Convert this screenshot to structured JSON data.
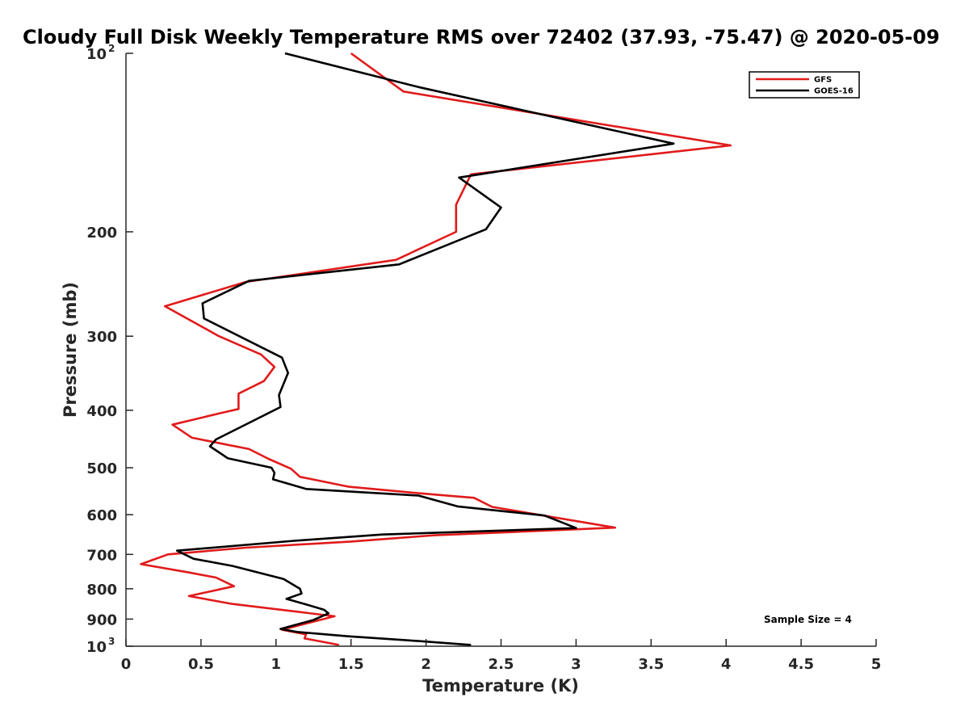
{
  "chart_data": {
    "type": "line",
    "title": "Cloudy Full Disk Weekly Temperature RMS over 72402 (37.93, -75.47) @ 2020-05-09",
    "xlabel": "Temperature (K)",
    "ylabel": "Pressure (mb)",
    "xlim": [
      0,
      5
    ],
    "ylim": [
      100,
      1000
    ],
    "y_scale": "log",
    "y_reversed": true,
    "x_ticks": [
      0,
      0.5,
      1,
      1.5,
      2,
      2.5,
      3,
      3.5,
      4,
      4.5,
      5
    ],
    "x_tick_labels": [
      "0",
      "0.5",
      "1",
      "1.5",
      "2",
      "2.5",
      "3",
      "3.5",
      "4",
      "4.5",
      "5"
    ],
    "y_ticks": [
      100,
      200,
      300,
      400,
      500,
      600,
      700,
      800,
      900,
      1000
    ],
    "y_tick_labels": [
      {
        "base": "10",
        "exp": "2"
      },
      {
        "base": "200",
        "exp": ""
      },
      {
        "base": "300",
        "exp": ""
      },
      {
        "base": "400",
        "exp": ""
      },
      {
        "base": "500",
        "exp": ""
      },
      {
        "base": "600",
        "exp": ""
      },
      {
        "base": "700",
        "exp": ""
      },
      {
        "base": "800",
        "exp": ""
      },
      {
        "base": "900",
        "exp": ""
      },
      {
        "base": "10",
        "exp": "3"
      }
    ],
    "grid": false,
    "legend_position": "top-right",
    "annotation": "Sample Size = 4",
    "series": [
      {
        "name": "GFS",
        "color": "#e11b1b",
        "points": [
          [
            1.5,
            100
          ],
          [
            1.85,
            116
          ],
          [
            4.03,
            143
          ],
          [
            2.3,
            160
          ],
          [
            2.2,
            180
          ],
          [
            2.2,
            200
          ],
          [
            1.8,
            223
          ],
          [
            0.8,
            243
          ],
          [
            0.26,
            267
          ],
          [
            0.62,
            300
          ],
          [
            0.9,
            322
          ],
          [
            0.99,
            338
          ],
          [
            0.92,
            357
          ],
          [
            0.75,
            375
          ],
          [
            0.75,
            398
          ],
          [
            0.62,
            405
          ],
          [
            0.31,
            423
          ],
          [
            0.44,
            445
          ],
          [
            0.82,
            465
          ],
          [
            0.95,
            483
          ],
          [
            1.1,
            502
          ],
          [
            1.16,
            518
          ],
          [
            1.48,
            538
          ],
          [
            1.95,
            552
          ],
          [
            2.32,
            562
          ],
          [
            2.44,
            582
          ],
          [
            3.26,
            631
          ],
          [
            2.05,
            650
          ],
          [
            1.5,
            666
          ],
          [
            0.8,
            682
          ],
          [
            0.28,
            700
          ],
          [
            0.1,
            727
          ],
          [
            0.42,
            751
          ],
          [
            0.6,
            766
          ],
          [
            0.72,
            792
          ],
          [
            0.42,
            823
          ],
          [
            0.7,
            848
          ],
          [
            1.39,
            890
          ],
          [
            1.04,
            938
          ],
          [
            1.2,
            955
          ],
          [
            1.19,
            970
          ],
          [
            1.42,
            995
          ]
        ]
      },
      {
        "name": "GOES-16",
        "color": "#000000",
        "points": [
          [
            1.06,
            100
          ],
          [
            1.95,
            114
          ],
          [
            3.65,
            142
          ],
          [
            2.22,
            162
          ],
          [
            2.5,
            182
          ],
          [
            2.4,
            198
          ],
          [
            1.82,
            227
          ],
          [
            0.82,
            242
          ],
          [
            0.51,
            264
          ],
          [
            0.52,
            280
          ],
          [
            1.04,
            326
          ],
          [
            1.08,
            346
          ],
          [
            1.02,
            377
          ],
          [
            1.03,
            395
          ],
          [
            0.82,
            420
          ],
          [
            0.6,
            448
          ],
          [
            0.56,
            460
          ],
          [
            0.68,
            482
          ],
          [
            0.97,
            500
          ],
          [
            0.99,
            510
          ],
          [
            0.98,
            523
          ],
          [
            1.2,
            543
          ],
          [
            1.95,
            557
          ],
          [
            2.21,
            581
          ],
          [
            2.79,
            602
          ],
          [
            3.0,
            632
          ],
          [
            1.71,
            648
          ],
          [
            1.12,
            664
          ],
          [
            0.34,
            690
          ],
          [
            0.45,
            712
          ],
          [
            0.71,
            732
          ],
          [
            1.05,
            770
          ],
          [
            1.16,
            800
          ],
          [
            1.17,
            815
          ],
          [
            1.07,
            832
          ],
          [
            1.2,
            850
          ],
          [
            1.32,
            868
          ],
          [
            1.35,
            880
          ],
          [
            1.25,
            903
          ],
          [
            1.03,
            935
          ],
          [
            1.14,
            946
          ],
          [
            1.48,
            962
          ],
          [
            1.95,
            980
          ],
          [
            2.3,
            995
          ]
        ]
      }
    ]
  }
}
